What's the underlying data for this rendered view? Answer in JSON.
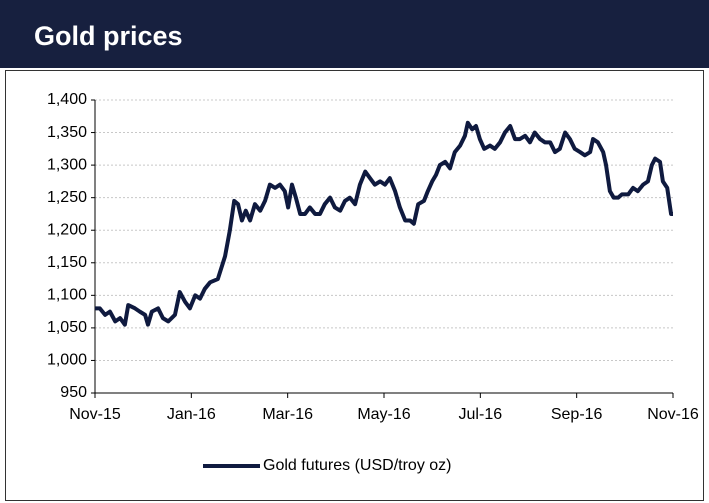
{
  "chart_data": {
    "type": "line",
    "title": "Gold prices",
    "x": [
      0,
      0.1,
      0.21,
      0.31,
      0.42,
      0.52,
      0.62,
      0.69,
      0.83,
      0.93,
      1.04,
      1.1,
      1.18,
      1.31,
      1.41,
      1.52,
      1.66,
      1.76,
      1.87,
      1.97,
      2.08,
      2.18,
      2.28,
      2.39,
      2.55,
      2.7,
      2.8,
      2.89,
      2.97,
      3.05,
      3.13,
      3.22,
      3.32,
      3.43,
      3.53,
      3.63,
      3.74,
      3.84,
      3.94,
      4.01,
      4.09,
      4.17,
      4.26,
      4.36,
      4.46,
      4.57,
      4.67,
      4.77,
      4.88,
      4.98,
      5.09,
      5.19,
      5.29,
      5.4,
      5.5,
      5.61,
      5.71,
      5.81,
      5.92,
      6.02,
      6.12,
      6.23,
      6.33,
      6.44,
      6.54,
      6.62,
      6.71,
      6.83,
      6.91,
      7.0,
      7.08,
      7.16,
      7.27,
      7.37,
      7.47,
      7.58,
      7.68,
      7.74,
      7.83,
      7.91,
      7.99,
      8.08,
      8.2,
      8.3,
      8.41,
      8.51,
      8.62,
      8.72,
      8.82,
      8.93,
      9.03,
      9.13,
      9.24,
      9.34,
      9.45,
      9.55,
      9.65,
      9.76,
      9.86,
      9.96,
      10.07,
      10.17,
      10.28,
      10.34,
      10.44,
      10.55,
      10.61,
      10.69,
      10.77,
      10.86,
      10.94,
      11.07,
      11.17,
      11.27,
      11.38,
      11.48,
      11.56,
      11.63,
      11.73,
      11.79,
      11.88,
      11.96,
      12.0
    ],
    "series": [
      {
        "name": "Gold futures (USD/troy oz)",
        "color": "#0f1a3f",
        "values": [
          1080,
          1080,
          1070,
          1075,
          1060,
          1065,
          1055,
          1085,
          1080,
          1075,
          1070,
          1055,
          1075,
          1080,
          1065,
          1060,
          1070,
          1105,
          1090,
          1080,
          1100,
          1095,
          1110,
          1120,
          1125,
          1160,
          1200,
          1245,
          1240,
          1215,
          1230,
          1215,
          1240,
          1230,
          1245,
          1270,
          1265,
          1270,
          1260,
          1235,
          1270,
          1250,
          1225,
          1225,
          1235,
          1225,
          1225,
          1240,
          1250,
          1235,
          1230,
          1245,
          1250,
          1240,
          1270,
          1290,
          1280,
          1270,
          1275,
          1270,
          1280,
          1260,
          1235,
          1215,
          1215,
          1210,
          1240,
          1245,
          1260,
          1275,
          1285,
          1300,
          1305,
          1295,
          1320,
          1330,
          1345,
          1365,
          1355,
          1360,
          1340,
          1325,
          1330,
          1325,
          1335,
          1350,
          1360,
          1340,
          1340,
          1345,
          1335,
          1350,
          1340,
          1335,
          1335,
          1320,
          1325,
          1350,
          1340,
          1325,
          1320,
          1315,
          1320,
          1340,
          1335,
          1320,
          1300,
          1260,
          1250,
          1250,
          1255,
          1255,
          1265,
          1260,
          1270,
          1275,
          1300,
          1310,
          1305,
          1275,
          1265,
          1225,
          1225
        ]
      }
    ],
    "xlim": [
      0,
      12
    ],
    "xticks": [
      {
        "value": 0,
        "label": "Nov-15"
      },
      {
        "value": 2,
        "label": "Jan-16"
      },
      {
        "value": 4,
        "label": "Mar-16"
      },
      {
        "value": 6,
        "label": "May-16"
      },
      {
        "value": 8,
        "label": "Jul-16"
      },
      {
        "value": 10,
        "label": "Sep-16"
      },
      {
        "value": 12,
        "label": "Nov-16"
      }
    ],
    "ylim": [
      950,
      1400
    ],
    "yticks": [
      950,
      {
        "value": 1000,
        "label": "1,000"
      },
      {
        "value": 1050,
        "label": "1,050"
      },
      {
        "value": 1100,
        "label": "1,100"
      },
      {
        "value": 1150,
        "label": "1,150"
      },
      {
        "value": 1200,
        "label": "1,200"
      },
      {
        "value": 1250,
        "label": "1,250"
      },
      {
        "value": 1300,
        "label": "1,300"
      },
      {
        "value": 1350,
        "label": "1,350"
      },
      {
        "value": 1400,
        "label": "1,400"
      }
    ],
    "grid": true,
    "legend": "bottom"
  }
}
